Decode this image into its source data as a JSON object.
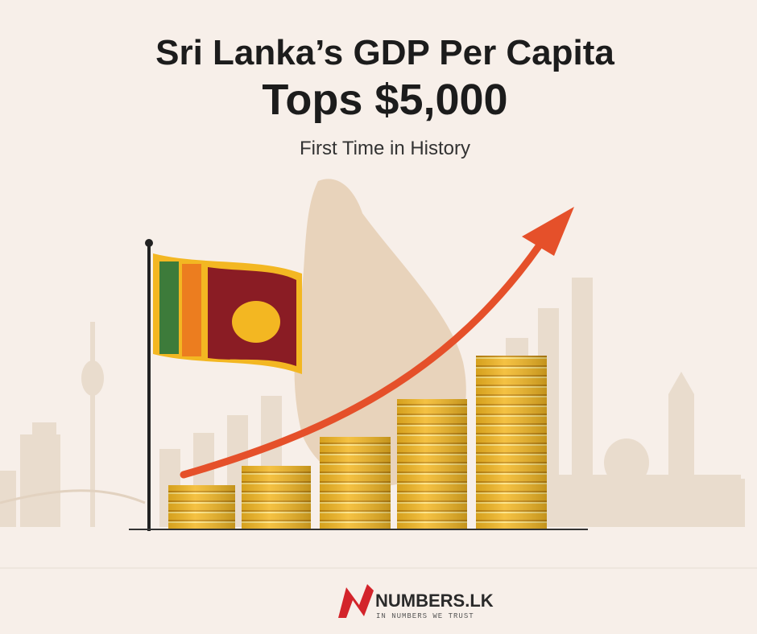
{
  "header": {
    "title_line1": "Sri Lanka’s GDP Per Capita",
    "title_line2": "Tops $5,000",
    "subtitle": "First Time in History"
  },
  "footer": {
    "brand": "NUMBERS.LK",
    "tagline": "IN NUMBERS WE TRUST"
  }
}
